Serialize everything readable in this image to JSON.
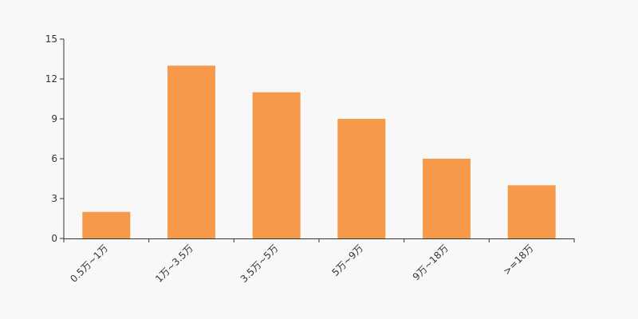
{
  "chart_data": {
    "type": "bar",
    "categories": [
      "0.5万~1万",
      "1万~3.5万",
      "3.5万~5万",
      "5万~9万",
      "9万~18万",
      ">=18万"
    ],
    "values": [
      2,
      13,
      11,
      9,
      6,
      4
    ],
    "ylim": [
      0,
      15
    ],
    "yticks": [
      0,
      3,
      6,
      9,
      12,
      15
    ],
    "grid": false,
    "bar_color": "#f7994b",
    "axis_color": "#333333"
  }
}
